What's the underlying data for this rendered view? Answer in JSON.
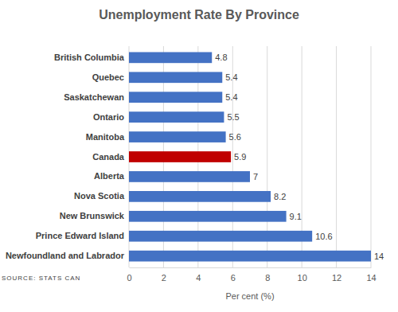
{
  "chart_data": {
    "type": "bar",
    "title": "Unemployment Rate By Province",
    "orientation": "horizontal",
    "categories": [
      "British Columbia",
      "Quebec",
      "Saskatchewan",
      "Ontario",
      "Manitoba",
      "Canada",
      "Alberta",
      "Nova Scotia",
      "New Brunswick",
      "Prince Edward Island",
      "Newfoundland and Labrador"
    ],
    "values": [
      4.8,
      5.4,
      5.4,
      5.5,
      5.6,
      5.9,
      7,
      8.2,
      9.1,
      10.6,
      14
    ],
    "colors": [
      "#4472c4",
      "#4472c4",
      "#4472c4",
      "#4472c4",
      "#4472c4",
      "#c00000",
      "#4472c4",
      "#4472c4",
      "#4472c4",
      "#4472c4",
      "#4472c4"
    ],
    "xlabel": "Per cent (%)",
    "xlim": [
      0,
      14
    ],
    "xticks": [
      0,
      2,
      4,
      6,
      8,
      10,
      12,
      14
    ],
    "grid": true,
    "data_labels": true,
    "annotations": [
      "SOURCE: STATS CAN"
    ]
  }
}
